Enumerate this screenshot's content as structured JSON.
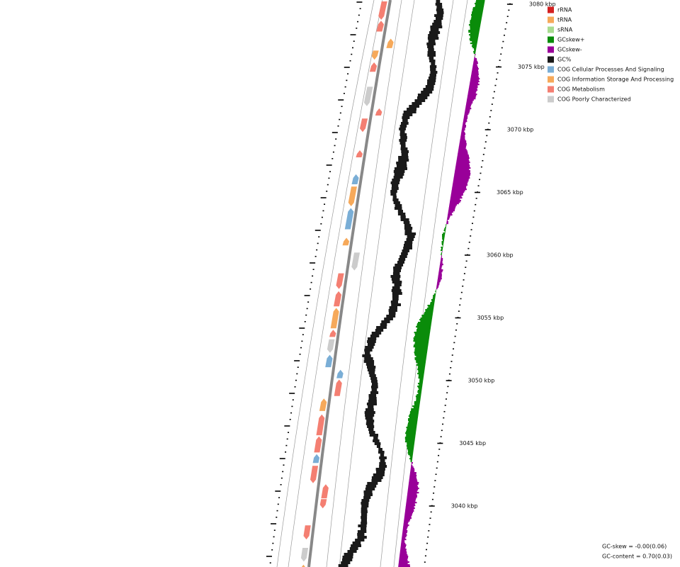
{
  "scale_labels": [
    "3080 kbp",
    "3075 kbp",
    "3070 kbp",
    "3065 kbp",
    "3060 kbp",
    "3055 kbp",
    "3050 kbp",
    "3045 kbp",
    "3040 kbp"
  ],
  "legend": [
    {
      "label": "rRNA",
      "color": "#d42020"
    },
    {
      "label": "tRNA",
      "color": "#f6a95a"
    },
    {
      "label": "sRNA",
      "color": "#a8dc90"
    },
    {
      "label": "GCskew+",
      "color": "#0a8c0a"
    },
    {
      "label": "GCskew-",
      "color": "#990099"
    },
    {
      "label": "GC%",
      "color": "#1a1a1a"
    },
    {
      "label": "COG Cellular Processes And Signaling",
      "color": "#7aaed6"
    },
    {
      "label": "COG Information Storage And Processing",
      "color": "#f6a95a"
    },
    {
      "label": "COG Metabolism",
      "color": "#f47f72"
    },
    {
      "label": "COG Poorly Characterized",
      "color": "#cccccc"
    }
  ],
  "stats": [
    "GC-skew = -0.00(0.06)",
    "GC-content = 0.70(0.03)"
  ]
}
